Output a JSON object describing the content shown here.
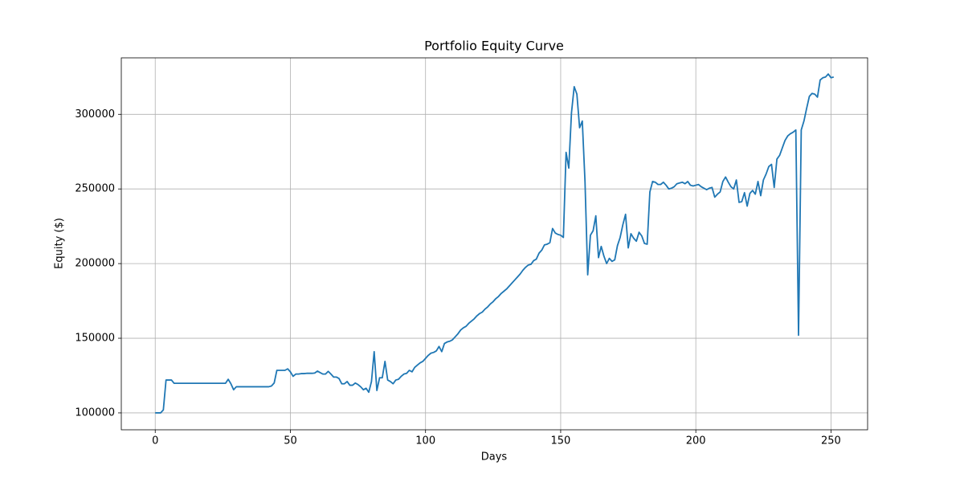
{
  "chart_data": {
    "type": "line",
    "title": "Portfolio Equity Curve",
    "xlabel": "Days",
    "ylabel": "Equity ($)",
    "color": "#1f77b4",
    "grid": true,
    "x": [
      0,
      1,
      2,
      3,
      4,
      5,
      6,
      7,
      8,
      9,
      10,
      11,
      12,
      13,
      14,
      15,
      16,
      17,
      18,
      19,
      20,
      21,
      22,
      23,
      24,
      25,
      26,
      27,
      28,
      29,
      30,
      31,
      32,
      33,
      34,
      35,
      36,
      37,
      38,
      39,
      40,
      41,
      42,
      43,
      44,
      45,
      46,
      47,
      48,
      49,
      50,
      51,
      52,
      53,
      54,
      55,
      56,
      57,
      58,
      59,
      60,
      61,
      62,
      63,
      64,
      65,
      66,
      67,
      68,
      69,
      70,
      71,
      72,
      73,
      74,
      75,
      76,
      77,
      78,
      79,
      80,
      81,
      82,
      83,
      84,
      85,
      86,
      87,
      88,
      89,
      90,
      91,
      92,
      93,
      94,
      95,
      96,
      97,
      98,
      99,
      100,
      101,
      102,
      103,
      104,
      105,
      106,
      107,
      108,
      109,
      110,
      111,
      112,
      113,
      114,
      115,
      116,
      117,
      118,
      119,
      120,
      121,
      122,
      123,
      124,
      125,
      126,
      127,
      128,
      129,
      130,
      131,
      132,
      133,
      134,
      135,
      136,
      137,
      138,
      139,
      140,
      141,
      142,
      143,
      144,
      145,
      146,
      147,
      148,
      149,
      150,
      151,
      152,
      153,
      154,
      155,
      156,
      157,
      158,
      159,
      160,
      161,
      162,
      163,
      164,
      165,
      166,
      167,
      168,
      169,
      170,
      171,
      172,
      173,
      174,
      175,
      176,
      177,
      178,
      179,
      180,
      181,
      182,
      183,
      184,
      185,
      186,
      187,
      188,
      189,
      190,
      191,
      192,
      193,
      194,
      195,
      196,
      197,
      198,
      199,
      200,
      201,
      202,
      203,
      204,
      205,
      206,
      207,
      208,
      209,
      210,
      211,
      212,
      213,
      214,
      215,
      216,
      217,
      218,
      219,
      220,
      221,
      222,
      223,
      224,
      225,
      226,
      227,
      228,
      229,
      230,
      231,
      232,
      233,
      234,
      235,
      236,
      237,
      238,
      239,
      240,
      241,
      242,
      243,
      244,
      245,
      246,
      247,
      248,
      249,
      250,
      251
    ],
    "values": [
      100000,
      100000,
      100000,
      102000,
      122000,
      122000,
      122000,
      119800,
      119800,
      119800,
      119800,
      119800,
      119800,
      119800,
      119800,
      119800,
      119800,
      119800,
      119800,
      119800,
      119800,
      119800,
      119800,
      119800,
      119800,
      119800,
      119800,
      122500,
      119500,
      115500,
      117500,
      117500,
      117500,
      117500,
      117500,
      117500,
      117500,
      117500,
      117500,
      117500,
      117500,
      117500,
      117500,
      118000,
      120000,
      128500,
      128500,
      128500,
      128500,
      129500,
      127500,
      124500,
      126000,
      126000,
      126300,
      126300,
      126500,
      126500,
      126500,
      126700,
      128000,
      127000,
      126000,
      126000,
      127800,
      126000,
      124000,
      124000,
      123000,
      119500,
      119500,
      121000,
      118500,
      118500,
      120000,
      119000,
      117500,
      115500,
      116500,
      113800,
      121000,
      141000,
      115000,
      123500,
      123500,
      134500,
      122000,
      121000,
      119500,
      122000,
      122500,
      124500,
      126000,
      126500,
      128500,
      127500,
      130500,
      132000,
      133500,
      134500,
      136500,
      138500,
      140000,
      140500,
      141500,
      144500,
      141000,
      146500,
      147500,
      148000,
      149000,
      151000,
      153000,
      155500,
      157000,
      158000,
      160000,
      161500,
      163000,
      165000,
      166500,
      167500,
      169500,
      171000,
      173000,
      174500,
      176500,
      178000,
      180000,
      181500,
      183000,
      185000,
      187000,
      189000,
      191000,
      193000,
      195500,
      197500,
      199000,
      199500,
      202000,
      203000,
      207000,
      209000,
      212500,
      213000,
      214000,
      223500,
      220500,
      219500,
      219000,
      217500,
      274500,
      264000,
      301000,
      318500,
      313500,
      291000,
      295500,
      255000,
      192500,
      219000,
      222000,
      232000,
      204000,
      211500,
      205000,
      200000,
      203500,
      201500,
      202500,
      212000,
      217500,
      226000,
      233000,
      210500,
      220000,
      217000,
      215000,
      221000,
      218500,
      213500,
      213000,
      248000,
      255000,
      254500,
      253000,
      253000,
      254500,
      252500,
      250000,
      250500,
      251500,
      253500,
      254000,
      254500,
      253500,
      255000,
      252500,
      252000,
      252500,
      253000,
      251500,
      250500,
      249500,
      250500,
      251000,
      244500,
      246500,
      248000,
      255000,
      258000,
      254500,
      251500,
      250000,
      256000,
      241000,
      241500,
      247500,
      238500,
      247000,
      249000,
      246500,
      255000,
      245500,
      256000,
      260000,
      265000,
      266500,
      251000,
      270000,
      272500,
      277500,
      282500,
      285500,
      287000,
      288000,
      289500,
      152000,
      289500,
      295500,
      304000,
      312000,
      314000,
      313500,
      311500,
      323000,
      324500,
      325000,
      327000,
      324500,
      325000
    ],
    "xlim": [
      -12.55,
      263.55
    ],
    "xticks": [
      0,
      50,
      100,
      150,
      200,
      250
    ],
    "ylim": [
      88675,
      337825
    ],
    "yticks": [
      100000,
      150000,
      200000,
      250000,
      300000
    ]
  }
}
